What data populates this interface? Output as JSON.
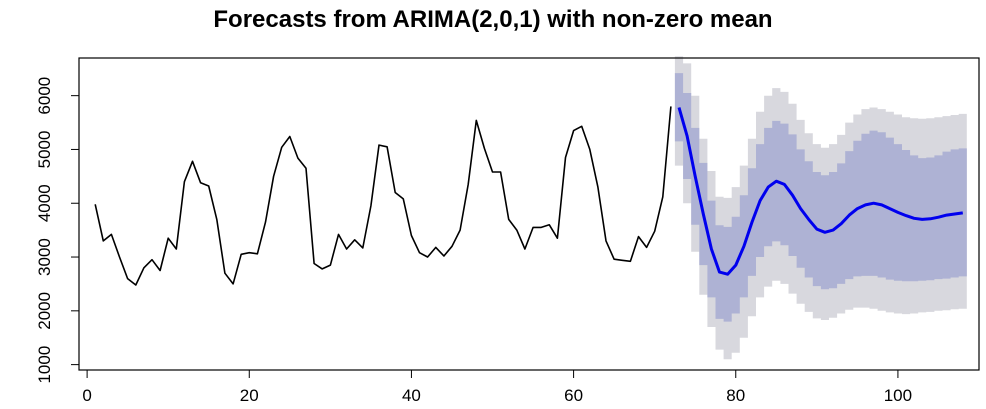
{
  "chart_data": {
    "type": "line",
    "title": "Forecasts from ARIMA(2,0,1) with non-zero mean",
    "xlabel": "",
    "ylabel": "",
    "xlim": [
      -1,
      110
    ],
    "ylim": [
      900,
      6700
    ],
    "xticks": [
      0,
      20,
      40,
      60,
      80,
      100
    ],
    "yticks": [
      1000,
      2000,
      3000,
      4000,
      5000,
      6000
    ],
    "grid": false,
    "legend": "none",
    "colors": {
      "history": "#000000",
      "forecast": "#0000ee",
      "band80": "#aeb2d4",
      "band95": "#d8d8de"
    },
    "series": [
      {
        "role": "history",
        "x": [
          1,
          2,
          3,
          4,
          5,
          6,
          7,
          8,
          9,
          10,
          11,
          12,
          13,
          14,
          15,
          16,
          17,
          18,
          19,
          20,
          21,
          22,
          23,
          24,
          25,
          26,
          27,
          28,
          29,
          30,
          31,
          32,
          33,
          34,
          35,
          36,
          37,
          38,
          39,
          40,
          41,
          42,
          43,
          44,
          45,
          46,
          47,
          48,
          49,
          50,
          51,
          52,
          53,
          54,
          55,
          56,
          57,
          58,
          59,
          60,
          61,
          62,
          63,
          64,
          65,
          66,
          67,
          68,
          69,
          70,
          71,
          72
        ],
        "y": [
          3980,
          3300,
          3420,
          3000,
          2600,
          2480,
          2800,
          2950,
          2750,
          3350,
          3150,
          4400,
          4780,
          4380,
          4320,
          3700,
          2700,
          2500,
          3050,
          3080,
          3060,
          3650,
          4500,
          5040,
          5240,
          4840,
          4650,
          2880,
          2780,
          2850,
          3420,
          3150,
          3320,
          3170,
          3950,
          5080,
          5050,
          4200,
          4080,
          3400,
          3080,
          3000,
          3180,
          3020,
          3200,
          3500,
          4350,
          5540,
          5020,
          4580,
          4580,
          3700,
          3500,
          3150,
          3550,
          3550,
          3600,
          3350,
          4850,
          5350,
          5430,
          5000,
          4300,
          3300,
          2960,
          2940,
          2920,
          3380,
          3180,
          3480,
          4120,
          5800
        ]
      },
      {
        "role": "forecast",
        "x": [
          73,
          74,
          75,
          76,
          77,
          78,
          79,
          80,
          81,
          82,
          83,
          84,
          85,
          86,
          87,
          88,
          89,
          90,
          91,
          92,
          93,
          94,
          95,
          96,
          97,
          98,
          99,
          100,
          101,
          102,
          103,
          104,
          105,
          106,
          107,
          108
        ],
        "y": [
          5780,
          5250,
          4500,
          3800,
          3150,
          2720,
          2680,
          2850,
          3200,
          3650,
          4050,
          4300,
          4410,
          4350,
          4150,
          3900,
          3700,
          3520,
          3460,
          3500,
          3620,
          3780,
          3900,
          3970,
          4000,
          3970,
          3900,
          3830,
          3770,
          3720,
          3700,
          3710,
          3740,
          3780,
          3800,
          3820
        ]
      }
    ],
    "band80": {
      "lo": [
        5150,
        4450,
        3600,
        2850,
        2250,
        1850,
        1800,
        1950,
        2250,
        2650,
        3000,
        3200,
        3290,
        3220,
        3020,
        2800,
        2620,
        2460,
        2400,
        2420,
        2500,
        2590,
        2640,
        2650,
        2650,
        2620,
        2580,
        2560,
        2550,
        2550,
        2560,
        2570,
        2590,
        2600,
        2620,
        2640
      ],
      "hi": [
        6420,
        6050,
        5400,
        4750,
        4050,
        3590,
        3560,
        3750,
        4150,
        4650,
        5100,
        5400,
        5530,
        5480,
        5280,
        5000,
        4780,
        4580,
        4520,
        4580,
        4740,
        4970,
        5160,
        5290,
        5350,
        5320,
        5220,
        5100,
        4990,
        4890,
        4840,
        4850,
        4890,
        4960,
        5000,
        5020
      ]
    },
    "band95": {
      "lo": [
        4700,
        4000,
        3100,
        2300,
        1700,
        1280,
        1100,
        1220,
        1500,
        1900,
        2250,
        2450,
        2560,
        2500,
        2320,
        2130,
        1980,
        1860,
        1830,
        1870,
        1950,
        2020,
        2060,
        2060,
        2040,
        2000,
        1970,
        1950,
        1940,
        1950,
        1970,
        1980,
        2000,
        2010,
        2030,
        2040
      ],
      "hi": [
        6730,
        6600,
        6000,
        5200,
        4600,
        4120,
        4100,
        4300,
        4700,
        5200,
        5700,
        6000,
        6140,
        6070,
        5850,
        5550,
        5300,
        5100,
        5030,
        5100,
        5270,
        5500,
        5650,
        5750,
        5780,
        5750,
        5700,
        5650,
        5600,
        5580,
        5570,
        5580,
        5600,
        5620,
        5640,
        5660
      ]
    }
  }
}
